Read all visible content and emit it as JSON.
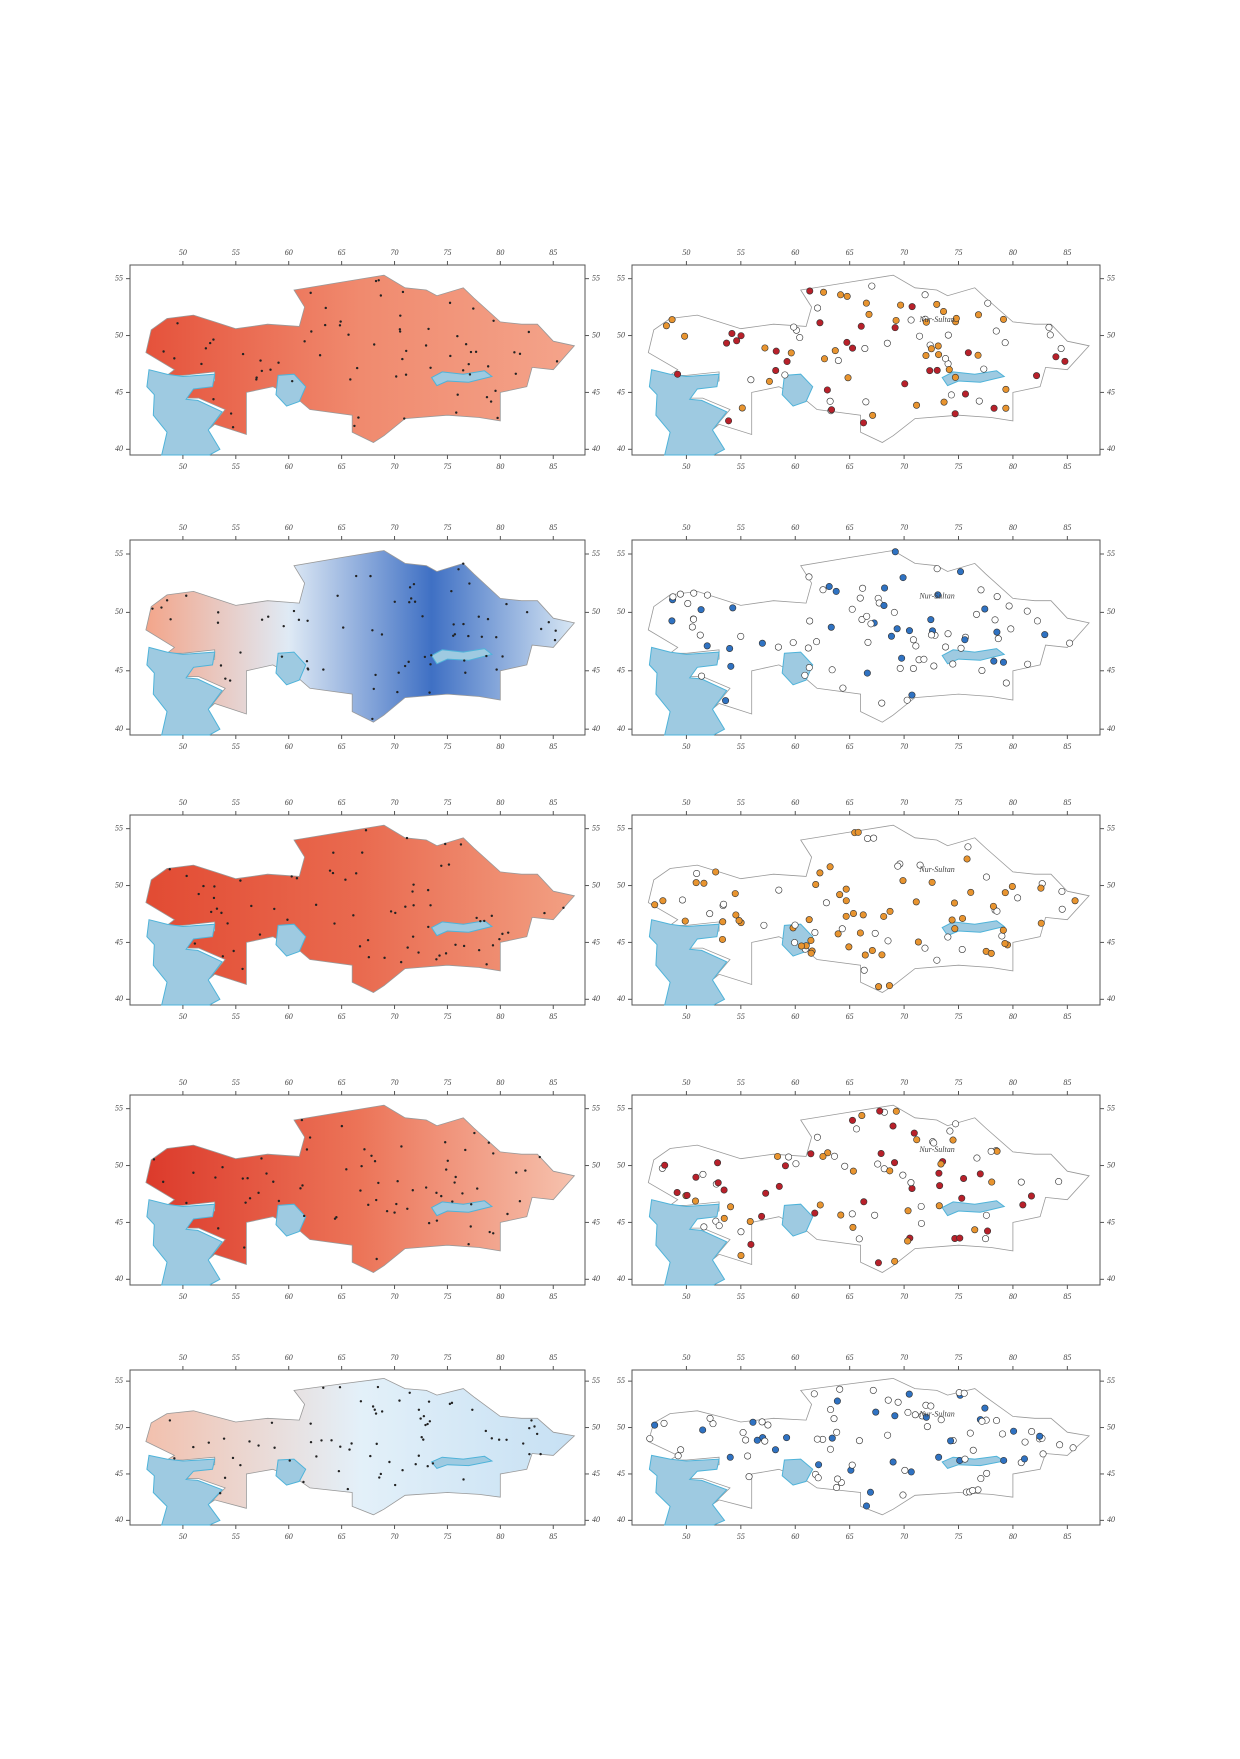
{
  "x_ticks": [
    50,
    55,
    60,
    65,
    70,
    75,
    80,
    85
  ],
  "y_ticks": [
    55,
    50,
    45,
    40
  ],
  "capital_label": "Nur-Sultan",
  "rows": [
    {
      "left": {
        "gradient": [
          "#e5523b",
          "#f08a6e",
          "#f4a48b"
        ]
      },
      "right": {
        "colors": [
          "#b8202a",
          "#e8942f",
          "#ffffff"
        ]
      }
    },
    {
      "left": {
        "gradient": [
          "#f3a58a",
          "#dfeaf5",
          "#3f70c4",
          "#d8e7f4"
        ]
      },
      "right": {
        "colors": [
          "#ffffff",
          "#ffffff",
          "#2f72c2"
        ]
      }
    },
    {
      "left": {
        "gradient": [
          "#e24b33",
          "#e96a4f",
          "#f2a083"
        ]
      },
      "right": {
        "colors": [
          "#e8942f",
          "#ffffff",
          "#e8942f"
        ]
      }
    },
    {
      "left": {
        "gradient": [
          "#dc3a2b",
          "#ec7458",
          "#f6c2ae"
        ]
      },
      "right": {
        "colors": [
          "#b8202a",
          "#e8942f",
          "#ffffff"
        ]
      }
    },
    {
      "left": {
        "gradient": [
          "#f2c0ad",
          "#e3f0f9",
          "#c6e0f3"
        ]
      },
      "right": {
        "colors": [
          "#ffffff",
          "#ffffff",
          "#2f72c2"
        ]
      }
    }
  ]
}
